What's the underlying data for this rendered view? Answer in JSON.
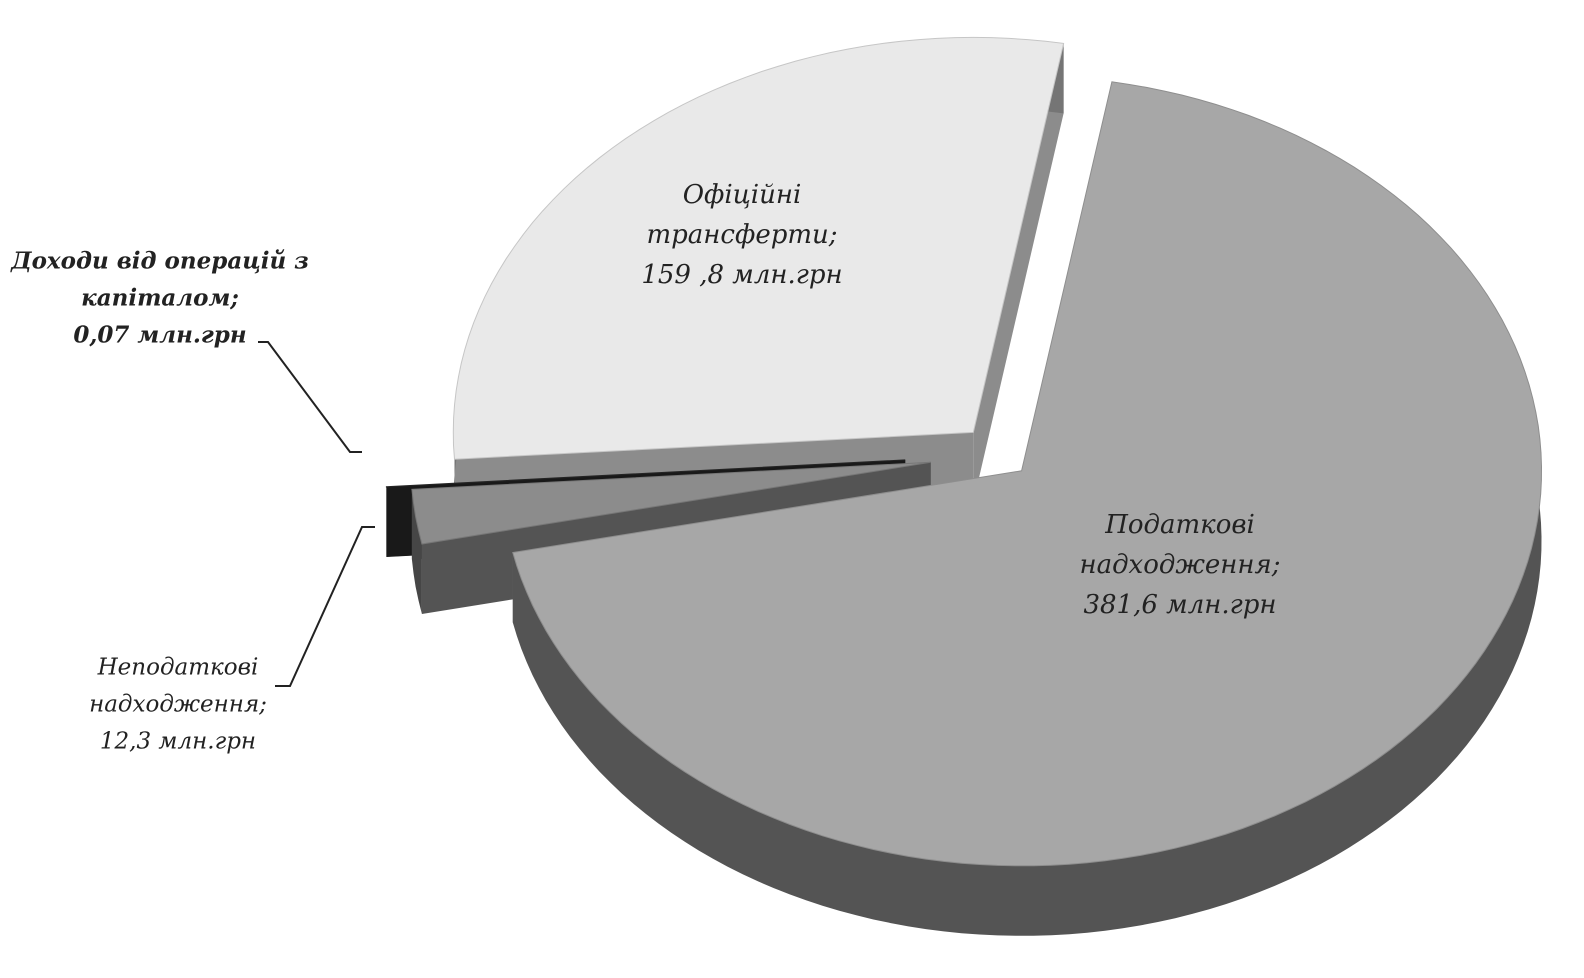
{
  "chart_data": {
    "type": "pie3d",
    "categories": [
      "Податкові надходження;",
      "Неподаткові надходження;",
      "Доходи від операцій з капіталом;",
      "Офіційні трансферти;"
    ],
    "values": [
      381.6,
      12.3,
      0.07,
      159.8
    ],
    "value_labels": [
      "381,6 млн.грн",
      "12,3 млн.грн",
      "0,07 млн.грн",
      "159 ,8 млн.грн"
    ],
    "colors": [
      "#a7a7a7",
      "#8c8c8c",
      "#2a2a2a",
      "#e9e9e9"
    ]
  }
}
